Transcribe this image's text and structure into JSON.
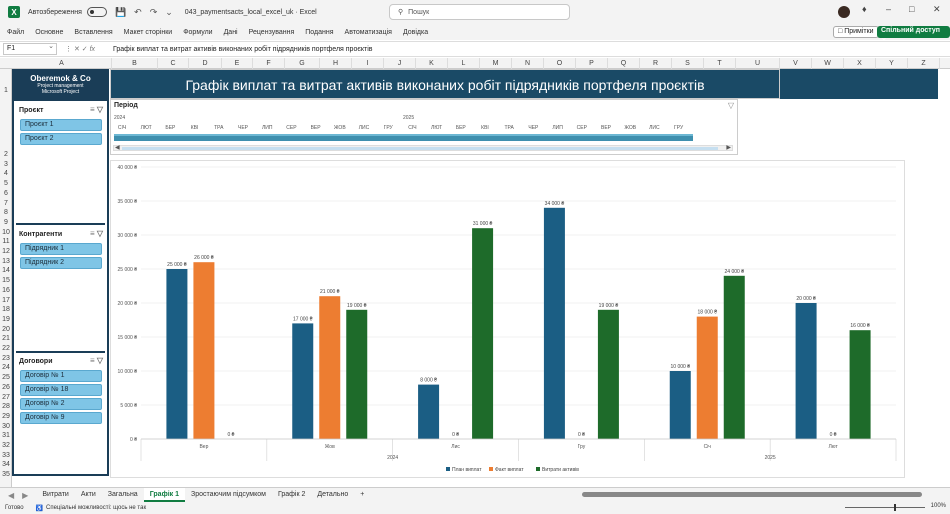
{
  "titlebar": {
    "autosave_label": "Автозбереження",
    "doc_title": "043_paymentsacts_local_excel_uk  ·  Excel",
    "search_placeholder": "Пошук"
  },
  "menu": {
    "items": [
      "Файл",
      "Основне",
      "Вставлення",
      "Макет сторінки",
      "Формули",
      "Дані",
      "Рецензування",
      "Подання",
      "Автоматизація",
      "Довідка"
    ],
    "notes_label": "Примітки",
    "share_label": "Спільний доступ"
  },
  "formulabar": {
    "namebox": "F1",
    "formula": "Графік виплат та витрат активів виконаних робіт підрядників портфеля проєктів"
  },
  "columns": [
    "A",
    "B",
    "C",
    "D",
    "E",
    "F",
    "G",
    "H",
    "I",
    "J",
    "K",
    "L",
    "M",
    "N",
    "O",
    "P",
    "Q",
    "R",
    "S",
    "T",
    "U",
    "V",
    "W",
    "X",
    "Y",
    "Z"
  ],
  "rows": [
    "1",
    "2",
    "3",
    "4",
    "5",
    "6",
    "7",
    "8",
    "9",
    "10",
    "11",
    "12",
    "13",
    "14",
    "15",
    "16",
    "17",
    "18",
    "19",
    "20",
    "21",
    "22",
    "23",
    "24",
    "25",
    "26",
    "27",
    "28",
    "29",
    "30",
    "31",
    "32",
    "33",
    "34",
    "35"
  ],
  "brand": {
    "name": "Oberemok & Co",
    "sub1": "Project management",
    "sub2": "Microsoft Project"
  },
  "banner": {
    "title": "Графік виплат та витрат активів виконаних робіт підрядників портфеля проєктів"
  },
  "slicers": {
    "projects": {
      "title": "Проєкт",
      "items": [
        "Проєкт 1",
        "Проєкт 2"
      ]
    },
    "contractors": {
      "title": "Контрагенти",
      "items": [
        "Підрядник 1",
        "Підрядник 2"
      ]
    },
    "contracts": {
      "title": "Договори",
      "items": [
        "Договір № 1",
        "Договір № 18",
        "Договір № 2",
        "Договір № 9"
      ]
    }
  },
  "timeline": {
    "title": "Період",
    "years": [
      "2024",
      "2025"
    ],
    "months": [
      "СІЧ",
      "ЛЮТ",
      "БЕР",
      "КВІ",
      "ТРА",
      "ЧЕР",
      "ЛИП",
      "СЕР",
      "ВЕР",
      "ЖОВ",
      "ЛИС",
      "ГРУ",
      "СІЧ",
      "ЛЮТ",
      "БЕР",
      "КВІ",
      "ТРА",
      "ЧЕР",
      "ЛИП",
      "СЕР",
      "ВЕР",
      "ЖОВ",
      "ЛИС",
      "ГРУ"
    ]
  },
  "chart_data": {
    "type": "bar",
    "title": "",
    "categories": [
      "Вер",
      "Жов",
      "Лис",
      "Гру",
      "Січ",
      "Лют"
    ],
    "groups": [
      {
        "label": "2024",
        "categories": [
          "Вер",
          "Жов",
          "Лис",
          "Гру"
        ]
      },
      {
        "label": "2025",
        "categories": [
          "Січ",
          "Лют"
        ]
      }
    ],
    "series": [
      {
        "name": "План виплат",
        "color": "#1b5e84",
        "values": [
          25000,
          17000,
          8000,
          34000,
          10000,
          20000
        ]
      },
      {
        "name": "Факт виплат",
        "color": "#ed7d31",
        "values": [
          26000,
          21000,
          0,
          0,
          18000,
          0
        ]
      },
      {
        "name": "Витрати активів",
        "color": "#1e6b2a",
        "values": [
          0,
          19000,
          31000,
          19000,
          24000,
          16000
        ]
      }
    ],
    "data_labels": [
      [
        "25 000 ₴",
        "17 000 ₴",
        "8 000 ₴",
        "34 000 ₴",
        "10 000 ₴",
        "20 000 ₴"
      ],
      [
        "26 000 ₴",
        "21 000 ₴",
        "0 ₴",
        "0 ₴",
        "18 000 ₴",
        "0 ₴"
      ],
      [
        "0 ₴",
        "19 000 ₴",
        "31 000 ₴",
        "19 000 ₴",
        "24 000 ₴",
        "16 000 ₴"
      ]
    ],
    "y_ticks": [
      "0 ₴",
      "5 000 ₴",
      "10 000 ₴",
      "15 000 ₴",
      "20 000 ₴",
      "25 000 ₴",
      "30 000 ₴",
      "35 000 ₴",
      "40 000 ₴"
    ],
    "ylim": [
      0,
      40000
    ],
    "grid": true,
    "legend_position": "bottom"
  },
  "sheet_tabs": [
    "Витрати",
    "Акти",
    "Загальна",
    "Графік 1",
    "Зростаючим підсумком",
    "Графік 2",
    "Детально"
  ],
  "active_tab": "Графік 1",
  "status": {
    "ready": "Готово",
    "accessibility": "Спеціальні можливості: щось не так",
    "zoom": "100%"
  }
}
